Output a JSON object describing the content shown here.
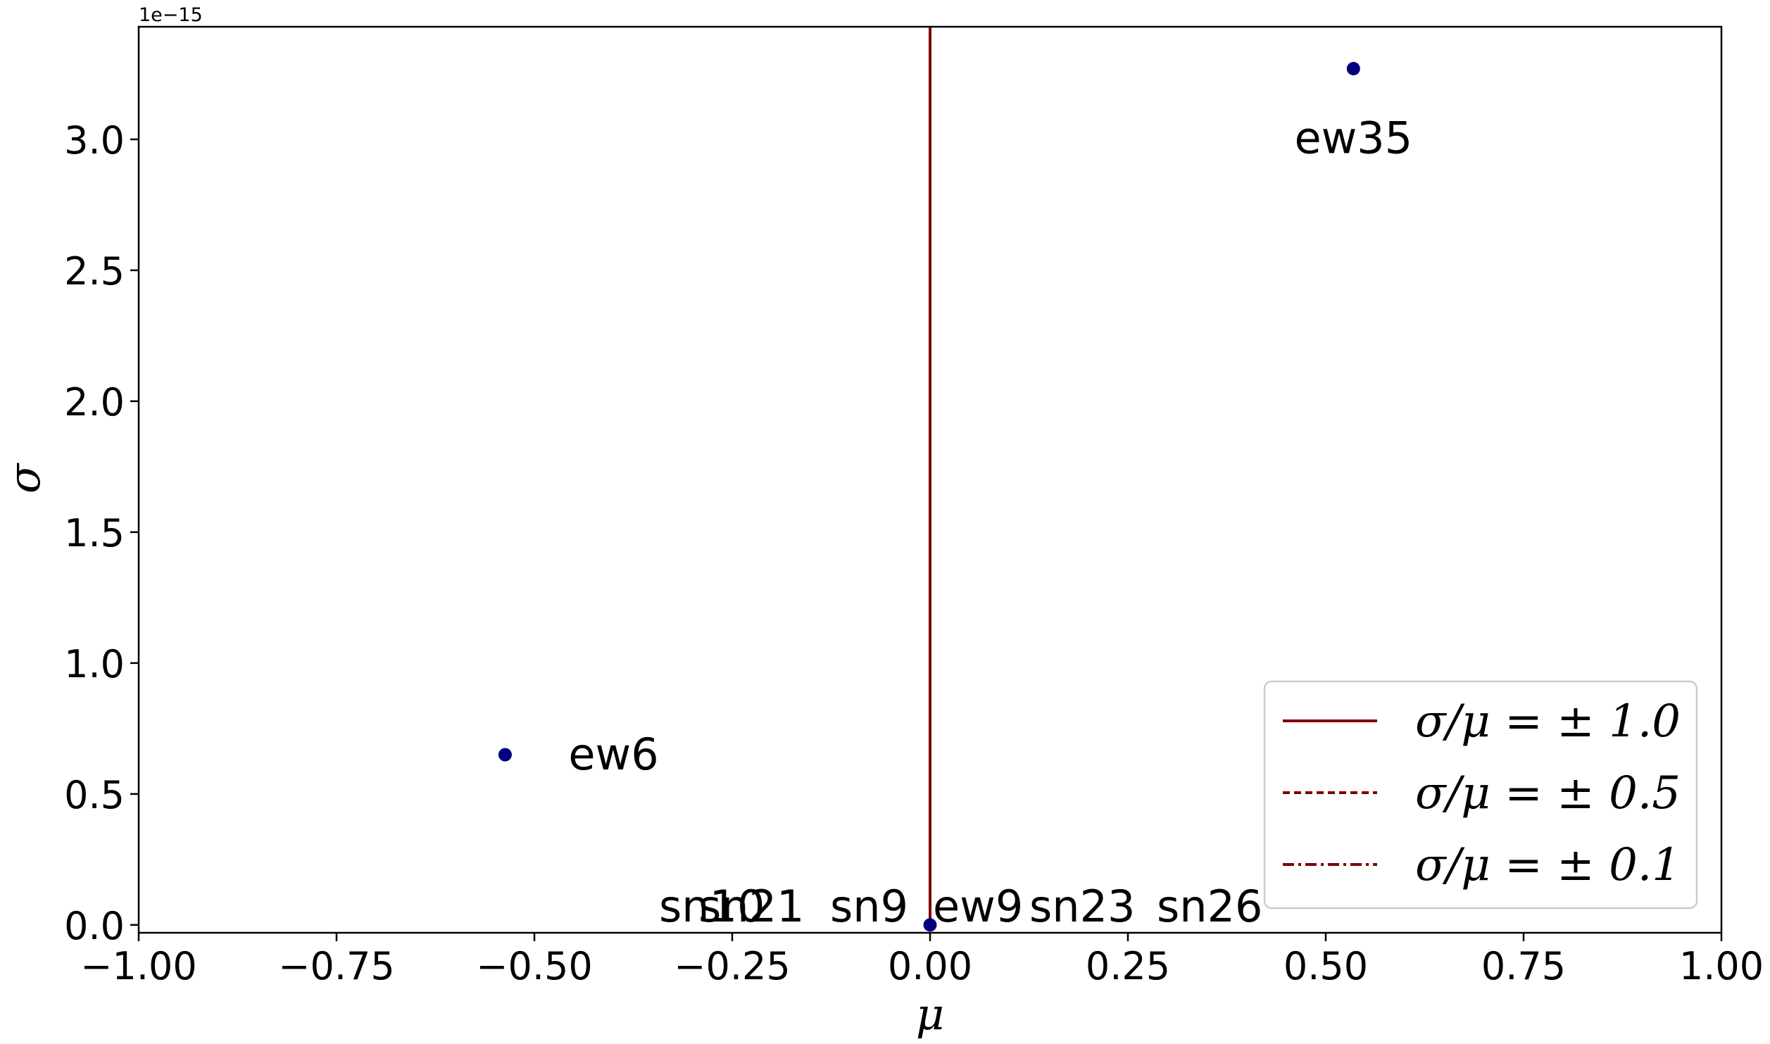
{
  "chart_data": {
    "type": "scatter",
    "xlabel": "μ",
    "ylabel": "σ",
    "xlim": [
      -1.0,
      1.0
    ],
    "ylim": [
      -0.03,
      3.43
    ],
    "y_offset_text": "1e−15",
    "x_ticks": [
      -1.0,
      -0.75,
      -0.5,
      -0.25,
      0.0,
      0.25,
      0.5,
      0.75,
      1.0
    ],
    "x_tick_labels": [
      "−1.00",
      "−0.75",
      "−0.50",
      "−0.25",
      "0.00",
      "0.25",
      "0.50",
      "0.75",
      "1.00"
    ],
    "y_ticks": [
      0.0,
      0.5,
      1.0,
      1.5,
      2.0,
      2.5,
      3.0
    ],
    "y_tick_labels": [
      "0.0",
      "0.5",
      "1.0",
      "1.5",
      "2.0",
      "2.5",
      "3.0"
    ],
    "point_color": "#00007f",
    "line_color": "#7f0000",
    "points": [
      {
        "label": "ew35",
        "x": 0.535,
        "y": 3.27
      },
      {
        "label": "ew6",
        "x": -0.537,
        "y": 0.65
      },
      {
        "label": "sn10",
        "x": 0.0,
        "y": 0.0
      },
      {
        "label": "sn21",
        "x": 0.0,
        "y": 0.0
      },
      {
        "label": "sn9",
        "x": 0.0,
        "y": 0.0
      },
      {
        "label": "ew9",
        "x": 0.0,
        "y": 0.0
      },
      {
        "label": "sn23",
        "x": 0.0,
        "y": 0.0
      },
      {
        "label": "sn26",
        "x": 0.0,
        "y": 0.0
      }
    ],
    "legend_position": "lower right",
    "series": [
      {
        "name": "σ/μ = ± 1.0",
        "ratio": 1.0,
        "style": "solid"
      },
      {
        "name": "σ/μ = ± 0.5",
        "ratio": 0.5,
        "style": "dashed"
      },
      {
        "name": "σ/μ = ± 0.1",
        "ratio": 0.1,
        "style": "dashdot"
      }
    ]
  }
}
